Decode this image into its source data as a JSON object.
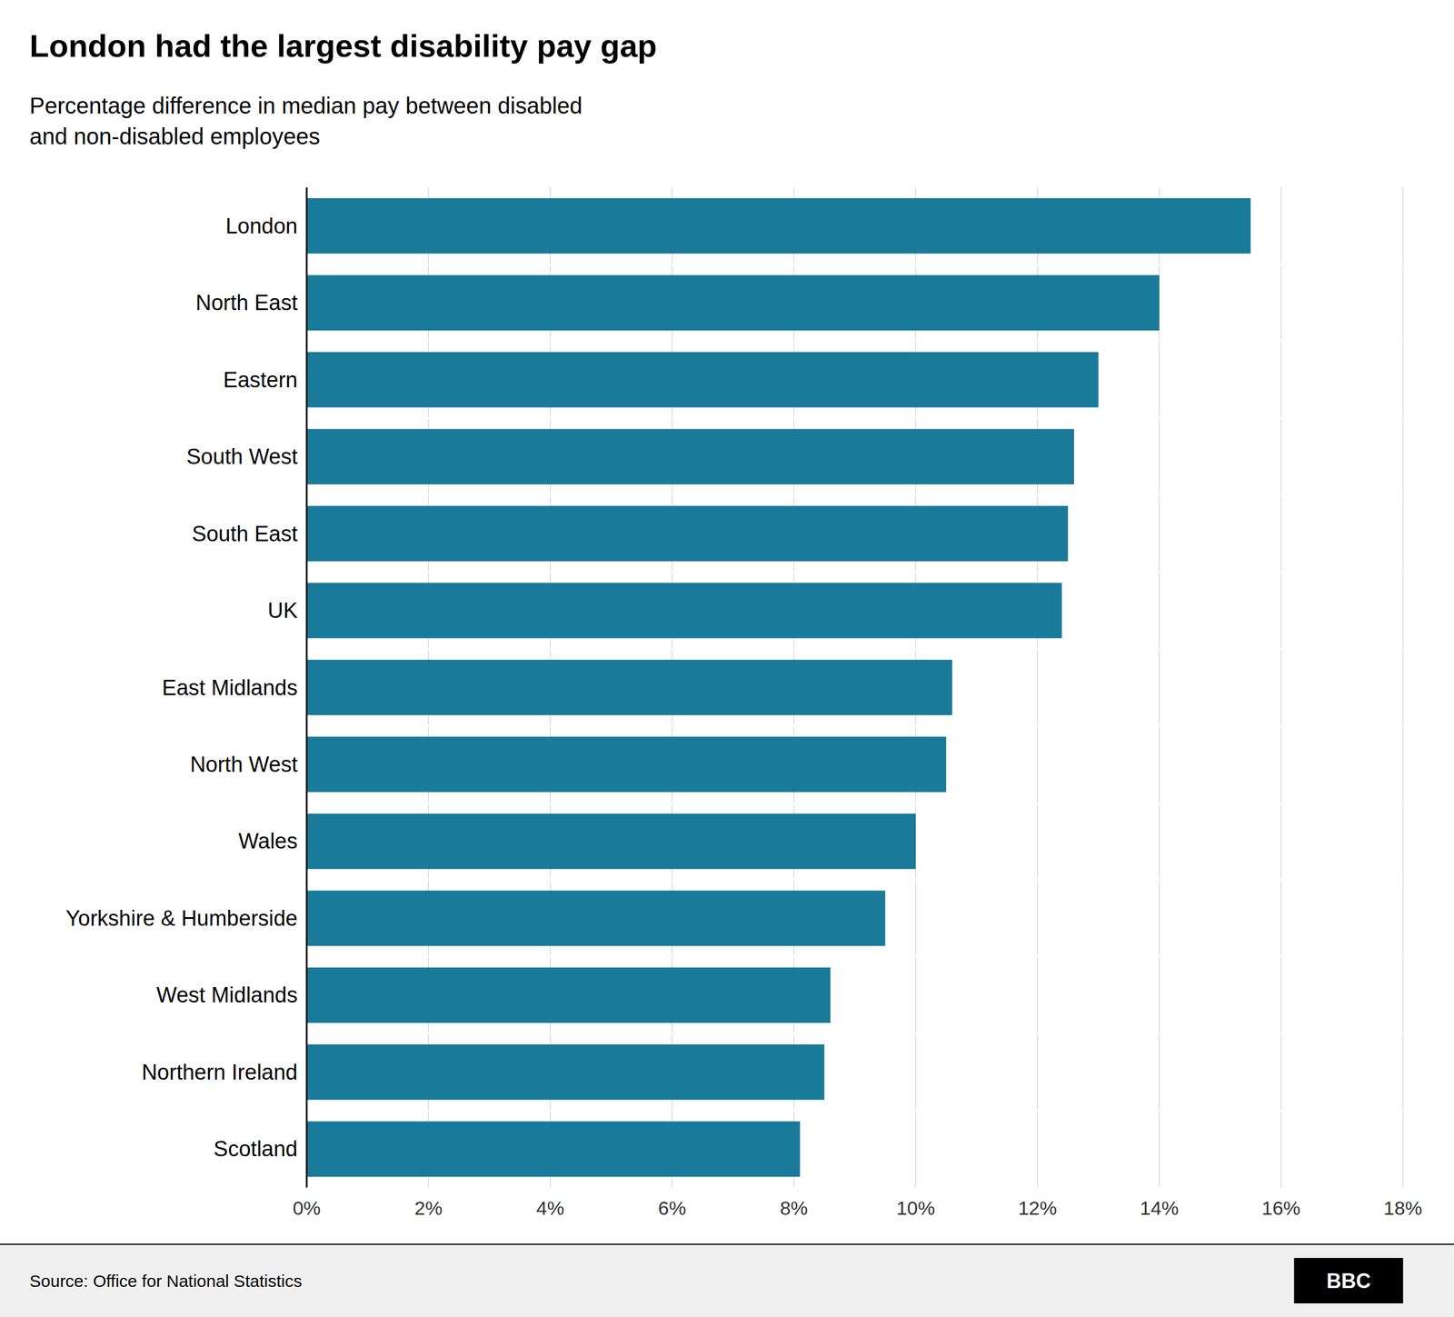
{
  "chart_data": {
    "type": "bar",
    "orientation": "horizontal",
    "title": "London had the largest disability pay gap",
    "subtitle": "Percentage difference in median pay between disabled\nand non-disabled employees",
    "source": "Source: Office for National Statistics",
    "logo": "BBC",
    "categories": [
      "London",
      "North East",
      "Eastern",
      "South West",
      "South East",
      "UK",
      "East Midlands",
      "North West",
      "Wales",
      "Yorkshire & Humberside",
      "West Midlands",
      "Northern Ireland",
      "Scotland"
    ],
    "values": [
      15.5,
      14.0,
      13.0,
      12.6,
      12.5,
      12.4,
      10.6,
      10.5,
      10.0,
      9.5,
      8.6,
      8.5,
      8.1
    ],
    "color": "#1a7a99",
    "xlim": [
      0,
      18
    ],
    "xticks": [
      {
        "value": 0,
        "label": "0%"
      },
      {
        "value": 2,
        "label": "2%"
      },
      {
        "value": 4,
        "label": "4%"
      },
      {
        "value": 6,
        "label": "6%"
      },
      {
        "value": 8,
        "label": "8%"
      },
      {
        "value": 10,
        "label": "10%"
      },
      {
        "value": 12,
        "label": "12%"
      },
      {
        "value": 14,
        "label": "14%"
      },
      {
        "value": 16,
        "label": "16%"
      },
      {
        "value": 18,
        "label": "18%"
      }
    ],
    "grid": true
  }
}
